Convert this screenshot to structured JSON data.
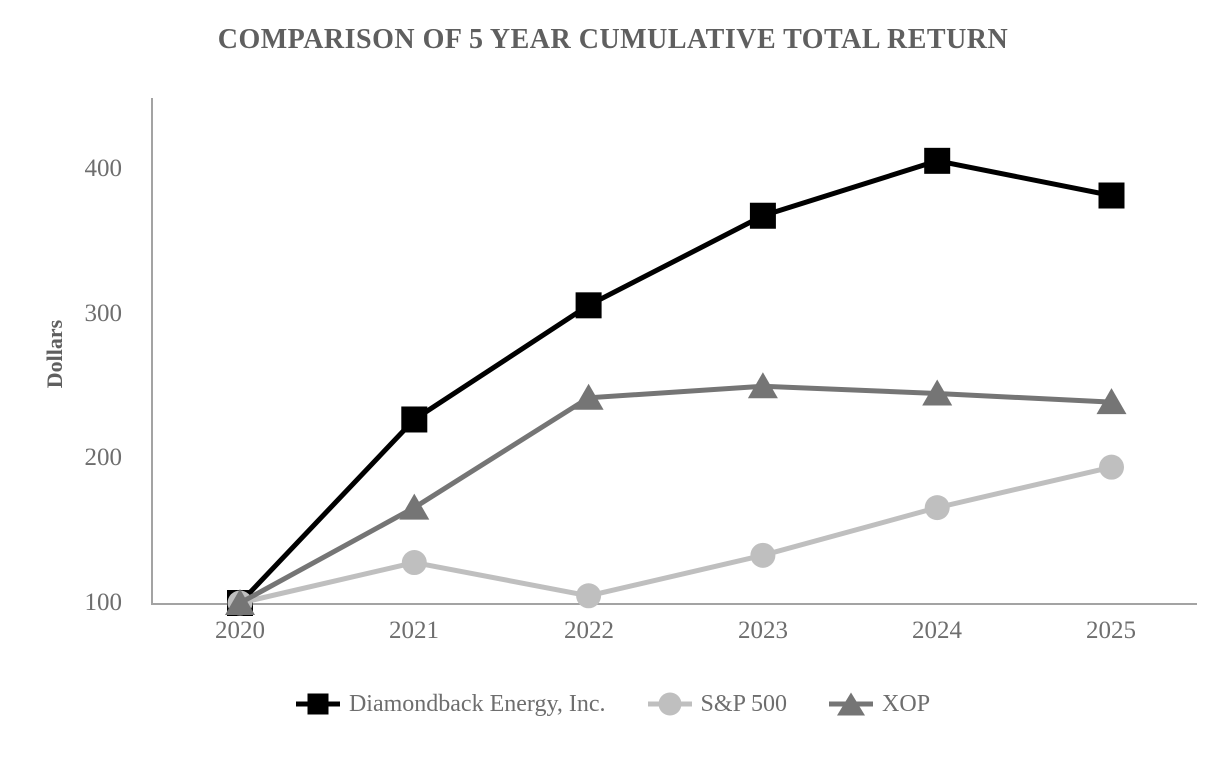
{
  "chart": {
    "title": "COMPARISON OF 5 YEAR CUMULATIVE TOTAL RETURN"
  },
  "chart_data": {
    "type": "line",
    "title": "COMPARISON OF 5 YEAR CUMULATIVE TOTAL RETURN",
    "xlabel": "",
    "ylabel": "Dollars",
    "categories": [
      "2020",
      "2021",
      "2022",
      "2023",
      "2024",
      "2025"
    ],
    "y_ticks": [
      100,
      200,
      300,
      400
    ],
    "ylim": [
      100,
      450
    ],
    "grid": false,
    "legend_position": "bottom",
    "series": [
      {
        "id": "fang",
        "name": "Diamondback Energy, Inc.",
        "marker": "square",
        "color": "#000000",
        "values": [
          100,
          227,
          306,
          368,
          406,
          382
        ]
      },
      {
        "id": "sp500",
        "name": "S&P 500",
        "marker": "circle",
        "color": "#bfbfbf",
        "values": [
          100,
          128,
          105,
          133,
          166,
          194
        ]
      },
      {
        "id": "xop",
        "name": "XOP",
        "marker": "triangle",
        "color": "#757575",
        "values": [
          100,
          166,
          242,
          250,
          245,
          239
        ]
      }
    ]
  }
}
